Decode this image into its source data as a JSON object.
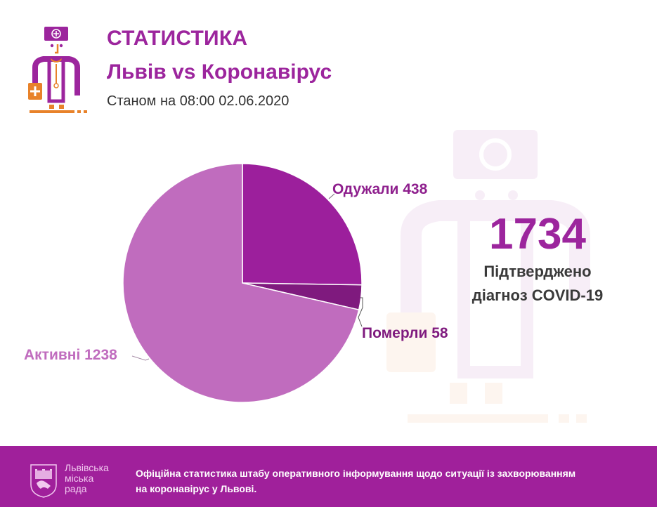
{
  "header": {
    "title": "СТАТИСТИКА",
    "subtitle": "Львів vs Коронавірус",
    "date": "Станом на 08:00 02.06.2020"
  },
  "summary": {
    "total": "1734",
    "caption_line1": "Підтверджено",
    "caption_line2": "діагноз COVID-19"
  },
  "footer": {
    "city_line1": "Львівська",
    "city_line2": "міська",
    "city_line3": "рада",
    "note": "Офіційна статистика штабу оперативного інформування щодо ситуації із захворюванням на коронавірус у Львові."
  },
  "colors": {
    "brand": "#9c259d",
    "recovered": "#9c1f9c",
    "died": "#7f1a7e",
    "active": "#c06cbe",
    "footer_bg": "#a0209b",
    "accent_orange": "#e8822a"
  },
  "chart_data": {
    "type": "pie",
    "title": "Статистика Львів vs Коронавірус",
    "total": 1734,
    "categories": [
      "Одужали",
      "Померли",
      "Активні"
    ],
    "values": [
      438,
      58,
      1238
    ],
    "labels": [
      "Одужали 438",
      "Померли 58",
      "Активні 1238"
    ],
    "colors": [
      "#9c1f9c",
      "#7f1a7e",
      "#c06cbe"
    ],
    "start_angle": "12 o'clock, clockwise",
    "legend": "none (inline labels with leader lines)"
  }
}
